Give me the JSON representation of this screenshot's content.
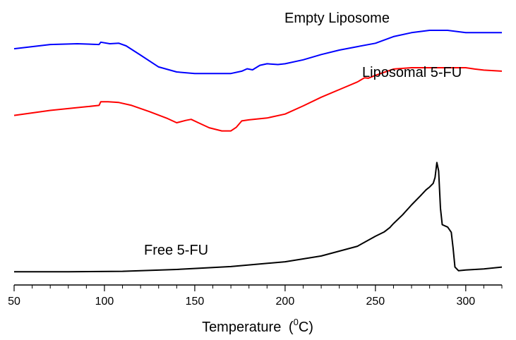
{
  "chart_data": {
    "type": "line",
    "title": "",
    "xlabel": "Temperature",
    "xlabel_unit": "(0C)",
    "xlabel_unit_parts": {
      "open": "(",
      "sup": "0",
      "rest": "C)"
    },
    "ylabel": "",
    "xlim": [
      50,
      320
    ],
    "xticks": [
      50,
      100,
      150,
      200,
      250,
      300
    ],
    "yaxis_visible": false,
    "ylim": [
      -0.05,
      1.0
    ],
    "series": [
      {
        "name": "Empty Liposome",
        "color": "#0000ff",
        "x": [
          50,
          70,
          85,
          97,
          98,
          103,
          108,
          112,
          120,
          130,
          140,
          150,
          160,
          170,
          176,
          179,
          182,
          186,
          190,
          196,
          200,
          210,
          220,
          230,
          240,
          250,
          260,
          270,
          280,
          290,
          300,
          310,
          320
        ],
        "y": [
          0.847,
          0.863,
          0.866,
          0.863,
          0.872,
          0.866,
          0.868,
          0.858,
          0.823,
          0.778,
          0.759,
          0.753,
          0.753,
          0.753,
          0.762,
          0.771,
          0.767,
          0.784,
          0.79,
          0.787,
          0.79,
          0.805,
          0.825,
          0.842,
          0.855,
          0.868,
          0.893,
          0.908,
          0.917,
          0.917,
          0.908,
          0.908,
          0.908
        ]
      },
      {
        "name": "Liposomal 5-FU",
        "color": "#ff0000",
        "x": [
          50,
          70,
          90,
          97,
          98,
          102,
          108,
          115,
          125,
          135,
          140,
          145,
          148,
          152,
          158,
          165,
          170,
          173,
          176,
          180,
          190,
          200,
          210,
          220,
          230,
          240,
          244,
          246,
          250,
          260,
          270,
          280,
          290,
          300,
          305,
          310,
          320
        ],
        "y": [
          0.594,
          0.613,
          0.627,
          0.632,
          0.646,
          0.646,
          0.643,
          0.632,
          0.608,
          0.582,
          0.566,
          0.575,
          0.579,
          0.566,
          0.547,
          0.535,
          0.535,
          0.549,
          0.573,
          0.577,
          0.584,
          0.599,
          0.63,
          0.663,
          0.692,
          0.721,
          0.737,
          0.735,
          0.746,
          0.77,
          0.775,
          0.775,
          0.775,
          0.775,
          0.77,
          0.766,
          0.762
        ]
      },
      {
        "name": "Free 5-FU",
        "color": "#000000",
        "x": [
          50,
          80,
          110,
          140,
          170,
          200,
          220,
          240,
          250,
          255,
          258,
          258.5,
          260,
          265,
          270,
          275,
          278,
          280,
          282,
          283,
          284,
          285,
          286,
          287,
          290,
          292,
          293,
          294,
          296,
          300,
          310,
          320
        ],
        "y": [
          0.0,
          0.0,
          0.002,
          0.009,
          0.02,
          0.038,
          0.06,
          0.097,
          0.135,
          0.152,
          0.168,
          0.172,
          0.183,
          0.216,
          0.254,
          0.289,
          0.311,
          0.322,
          0.336,
          0.358,
          0.415,
          0.383,
          0.241,
          0.179,
          0.17,
          0.15,
          0.09,
          0.018,
          0.004,
          0.007,
          0.011,
          0.018
        ]
      }
    ],
    "annotations": [
      {
        "text": "Empty Liposome",
        "series": "Empty Liposome"
      },
      {
        "text": "Liposomal 5-FU",
        "series": "Liposomal 5-FU"
      },
      {
        "text": "Free 5-FU",
        "series": "Free 5-FU"
      }
    ]
  }
}
